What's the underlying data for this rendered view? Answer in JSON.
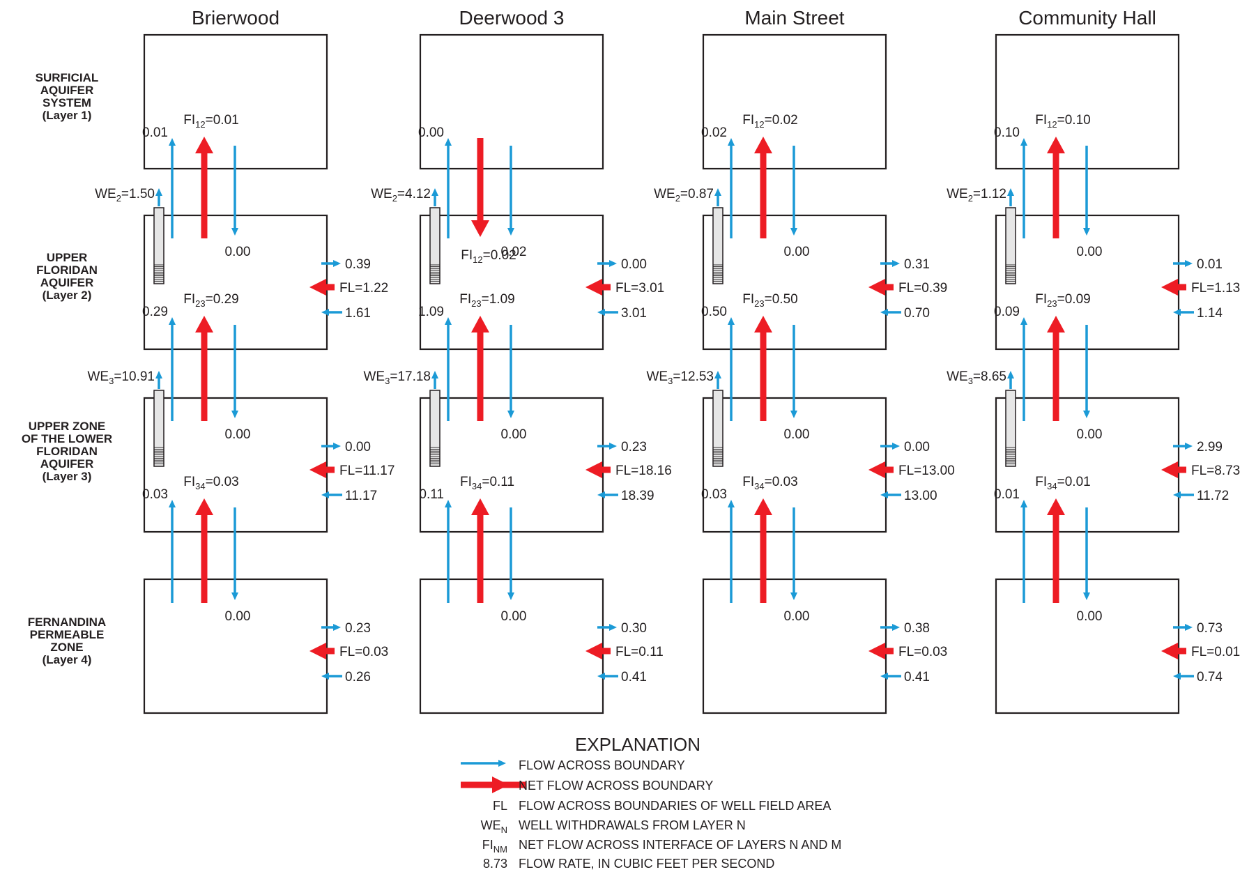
{
  "layer_labels": [
    [
      "SURFICIAL",
      "AQUIFER",
      "SYSTEM",
      "(Layer 1)"
    ],
    [
      "UPPER",
      "FLORIDAN",
      "AQUIFER",
      "(Layer 2)"
    ],
    [
      "UPPER ZONE",
      "OF THE LOWER",
      "FLORIDAN",
      "AQUIFER",
      "(Layer 3)"
    ],
    [
      "FERNANDINA",
      "PERMEABLE",
      "ZONE",
      "(Layer 4)"
    ]
  ],
  "sites": [
    {
      "name": "Brierwood",
      "we2": "1.50",
      "we3": "10.91",
      "i12": {
        "up": "0.01",
        "down": "0.00",
        "net": "0.01",
        "net_dir": "up"
      },
      "i23": {
        "up": "0.29",
        "down": "0.00",
        "net": "0.29",
        "net_dir": "up"
      },
      "i34": {
        "up": "0.03",
        "down": "0.00",
        "net": "0.03",
        "net_dir": "up"
      },
      "l2": {
        "out": "0.39",
        "in": "1.61",
        "fl": "1.22"
      },
      "l3": {
        "out": "0.00",
        "in": "11.17",
        "fl": "11.17"
      },
      "l4": {
        "out": "0.23",
        "in": "0.26",
        "fl": "0.03"
      }
    },
    {
      "name": "Deerwood 3",
      "we2": "4.12",
      "we3": "17.18",
      "i12": {
        "up": "0.00",
        "down": "0.02",
        "net": "0.02",
        "net_dir": "down"
      },
      "i23": {
        "up": "1.09",
        "down": "0.00",
        "net": "1.09",
        "net_dir": "up"
      },
      "i34": {
        "up": "0.11",
        "down": "0.00",
        "net": "0.11",
        "net_dir": "up"
      },
      "l2": {
        "out": "0.00",
        "in": "3.01",
        "fl": "3.01"
      },
      "l3": {
        "out": "0.23",
        "in": "18.39",
        "fl": "18.16"
      },
      "l4": {
        "out": "0.30",
        "in": "0.41",
        "fl": "0.11"
      }
    },
    {
      "name": "Main Street",
      "we2": "0.87",
      "we3": "12.53",
      "i12": {
        "up": "0.02",
        "down": "0.00",
        "net": "0.02",
        "net_dir": "up"
      },
      "i23": {
        "up": "0.50",
        "down": "0.00",
        "net": "0.50",
        "net_dir": "up"
      },
      "i34": {
        "up": "0.03",
        "down": "0.00",
        "net": "0.03",
        "net_dir": "up"
      },
      "l2": {
        "out": "0.31",
        "in": "0.70",
        "fl": "0.39"
      },
      "l3": {
        "out": "0.00",
        "in": "13.00",
        "fl": "13.00"
      },
      "l4": {
        "out": "0.38",
        "in": "0.41",
        "fl": "0.03"
      }
    },
    {
      "name": "Community Hall",
      "we2": "1.12",
      "we3": "8.65",
      "i12": {
        "up": "0.10",
        "down": "0.00",
        "net": "0.10",
        "net_dir": "up"
      },
      "i23": {
        "up": "0.09",
        "down": "0.00",
        "net": "0.09",
        "net_dir": "up"
      },
      "i34": {
        "up": "0.01",
        "down": "0.00",
        "net": "0.01",
        "net_dir": "up"
      },
      "l2": {
        "out": "0.01",
        "in": "1.14",
        "fl": "1.13"
      },
      "l3": {
        "out": "2.99",
        "in": "11.72",
        "fl": "8.73"
      },
      "l4": {
        "out": "0.73",
        "in": "0.74",
        "fl": "0.01"
      }
    }
  ],
  "explanation": {
    "title": "EXPLANATION",
    "items": [
      {
        "symbol": "",
        "text": "FLOW ACROSS BOUNDARY"
      },
      {
        "symbol": "",
        "text": "NET FLOW ACROSS BOUNDARY"
      },
      {
        "symbol": "FL",
        "text": "FLOW ACROSS BOUNDARIES OF WELL FIELD AREA"
      },
      {
        "symbol": "WE",
        "symbol_sub": "N",
        "text": "WELL WITHDRAWALS FROM LAYER N"
      },
      {
        "symbol": "FI",
        "symbol_sub": "NM",
        "text": "NET FLOW ACROSS INTERFACE OF LAYERS N AND M"
      },
      {
        "symbol": "8.73",
        "text": "FLOW RATE, IN CUBIC FEET PER SECOND"
      }
    ]
  },
  "colors": {
    "blue": "#1b9ad6",
    "red": "#ed1c24",
    "ink": "#231f20"
  }
}
